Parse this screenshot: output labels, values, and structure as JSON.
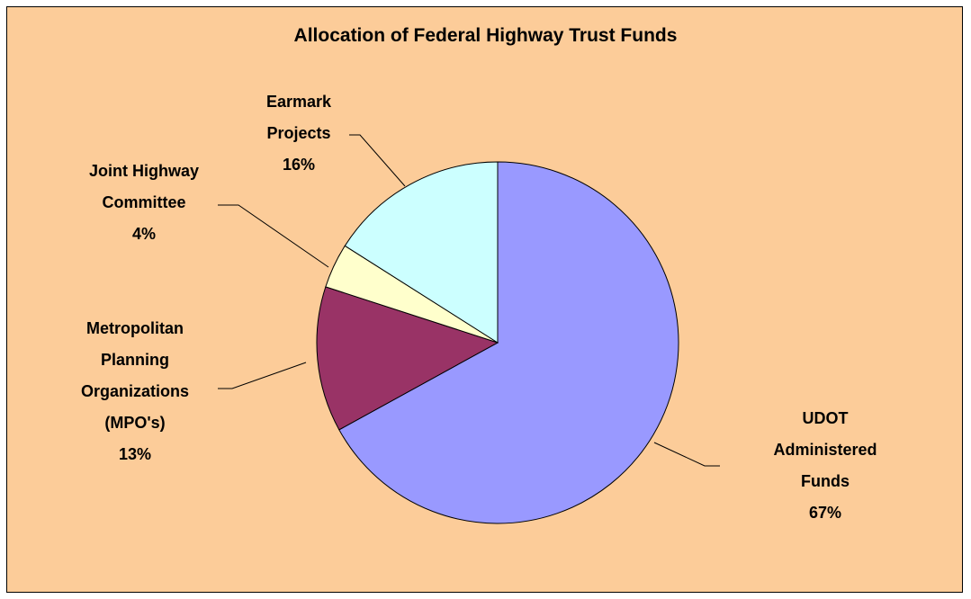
{
  "chart_data": {
    "type": "pie",
    "title": "Allocation of Federal Highway Trust Funds",
    "categories": [
      "UDOT Administered Funds",
      "Metropolitan Planning Organizations (MPO's)",
      "Joint Highway Committee",
      "Earmark Projects"
    ],
    "values": [
      67,
      13,
      4,
      16
    ],
    "value_labels": [
      "67%",
      "13%",
      "4%",
      "16%"
    ],
    "colors": [
      "#9999ff",
      "#993366",
      "#ffffcc",
      "#ccffff"
    ]
  }
}
